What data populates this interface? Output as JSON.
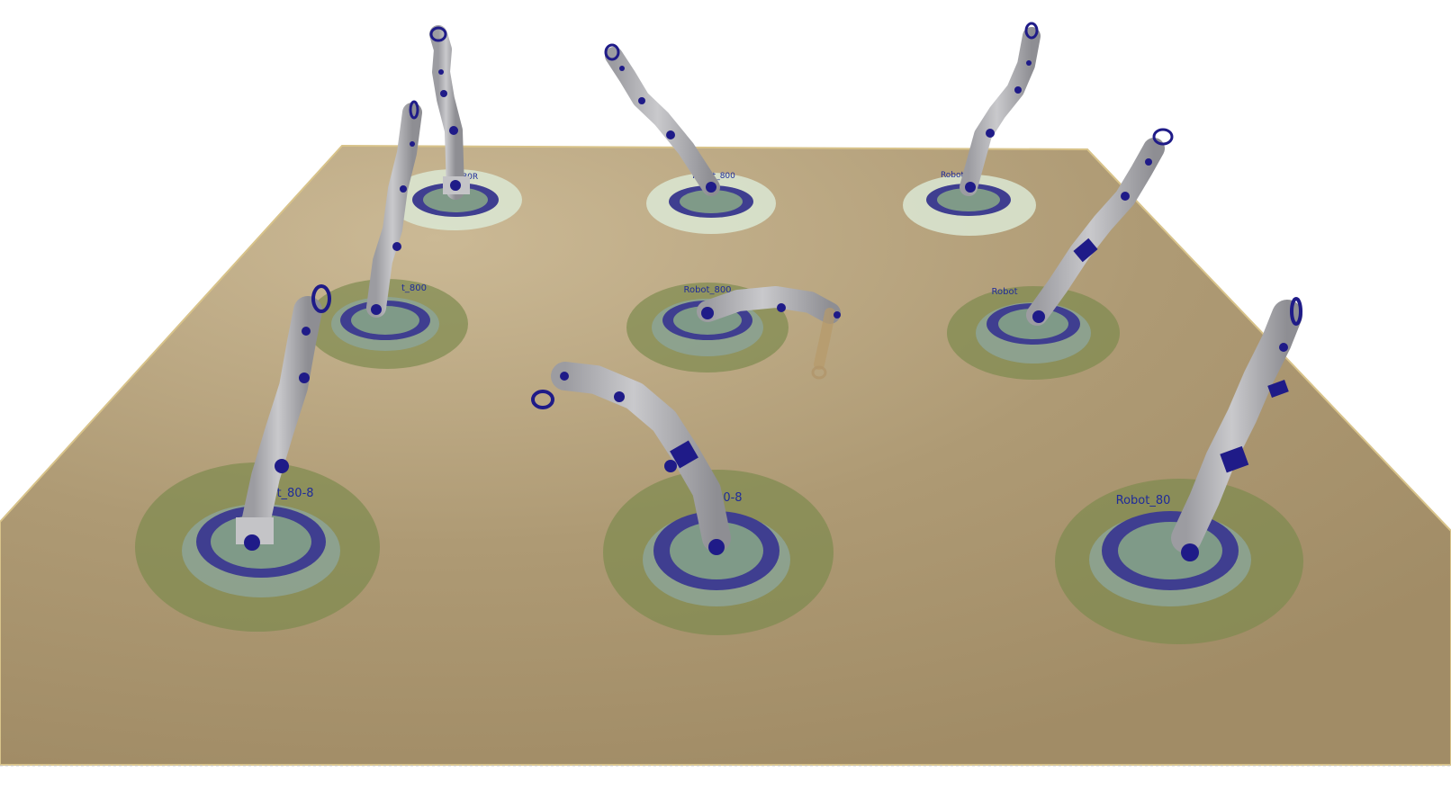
{
  "scene": {
    "floor_color": "#a6916b",
    "floor_highlight": "#cbb995",
    "floor_edge": "#d8c38a",
    "robot_body": "#b3b3b6",
    "robot_shade": "#8f8f94",
    "joint_color": "#1f1b88",
    "label_color": "#1f2b9a"
  },
  "robots": [
    {
      "id": "robot-back-left",
      "label": "_80R"
    },
    {
      "id": "robot-back-center",
      "label": "Robot_800"
    },
    {
      "id": "robot-back-right",
      "label": "Robot"
    },
    {
      "id": "robot-mid-left",
      "label": "t_800"
    },
    {
      "id": "robot-mid-center",
      "label": "Robot_800"
    },
    {
      "id": "robot-mid-right",
      "label": "Robot"
    },
    {
      "id": "robot-front-left",
      "label": "t_80-8"
    },
    {
      "id": "robot-front-center",
      "label": "R _00-8"
    },
    {
      "id": "robot-front-right",
      "label": "Robot_80"
    }
  ]
}
